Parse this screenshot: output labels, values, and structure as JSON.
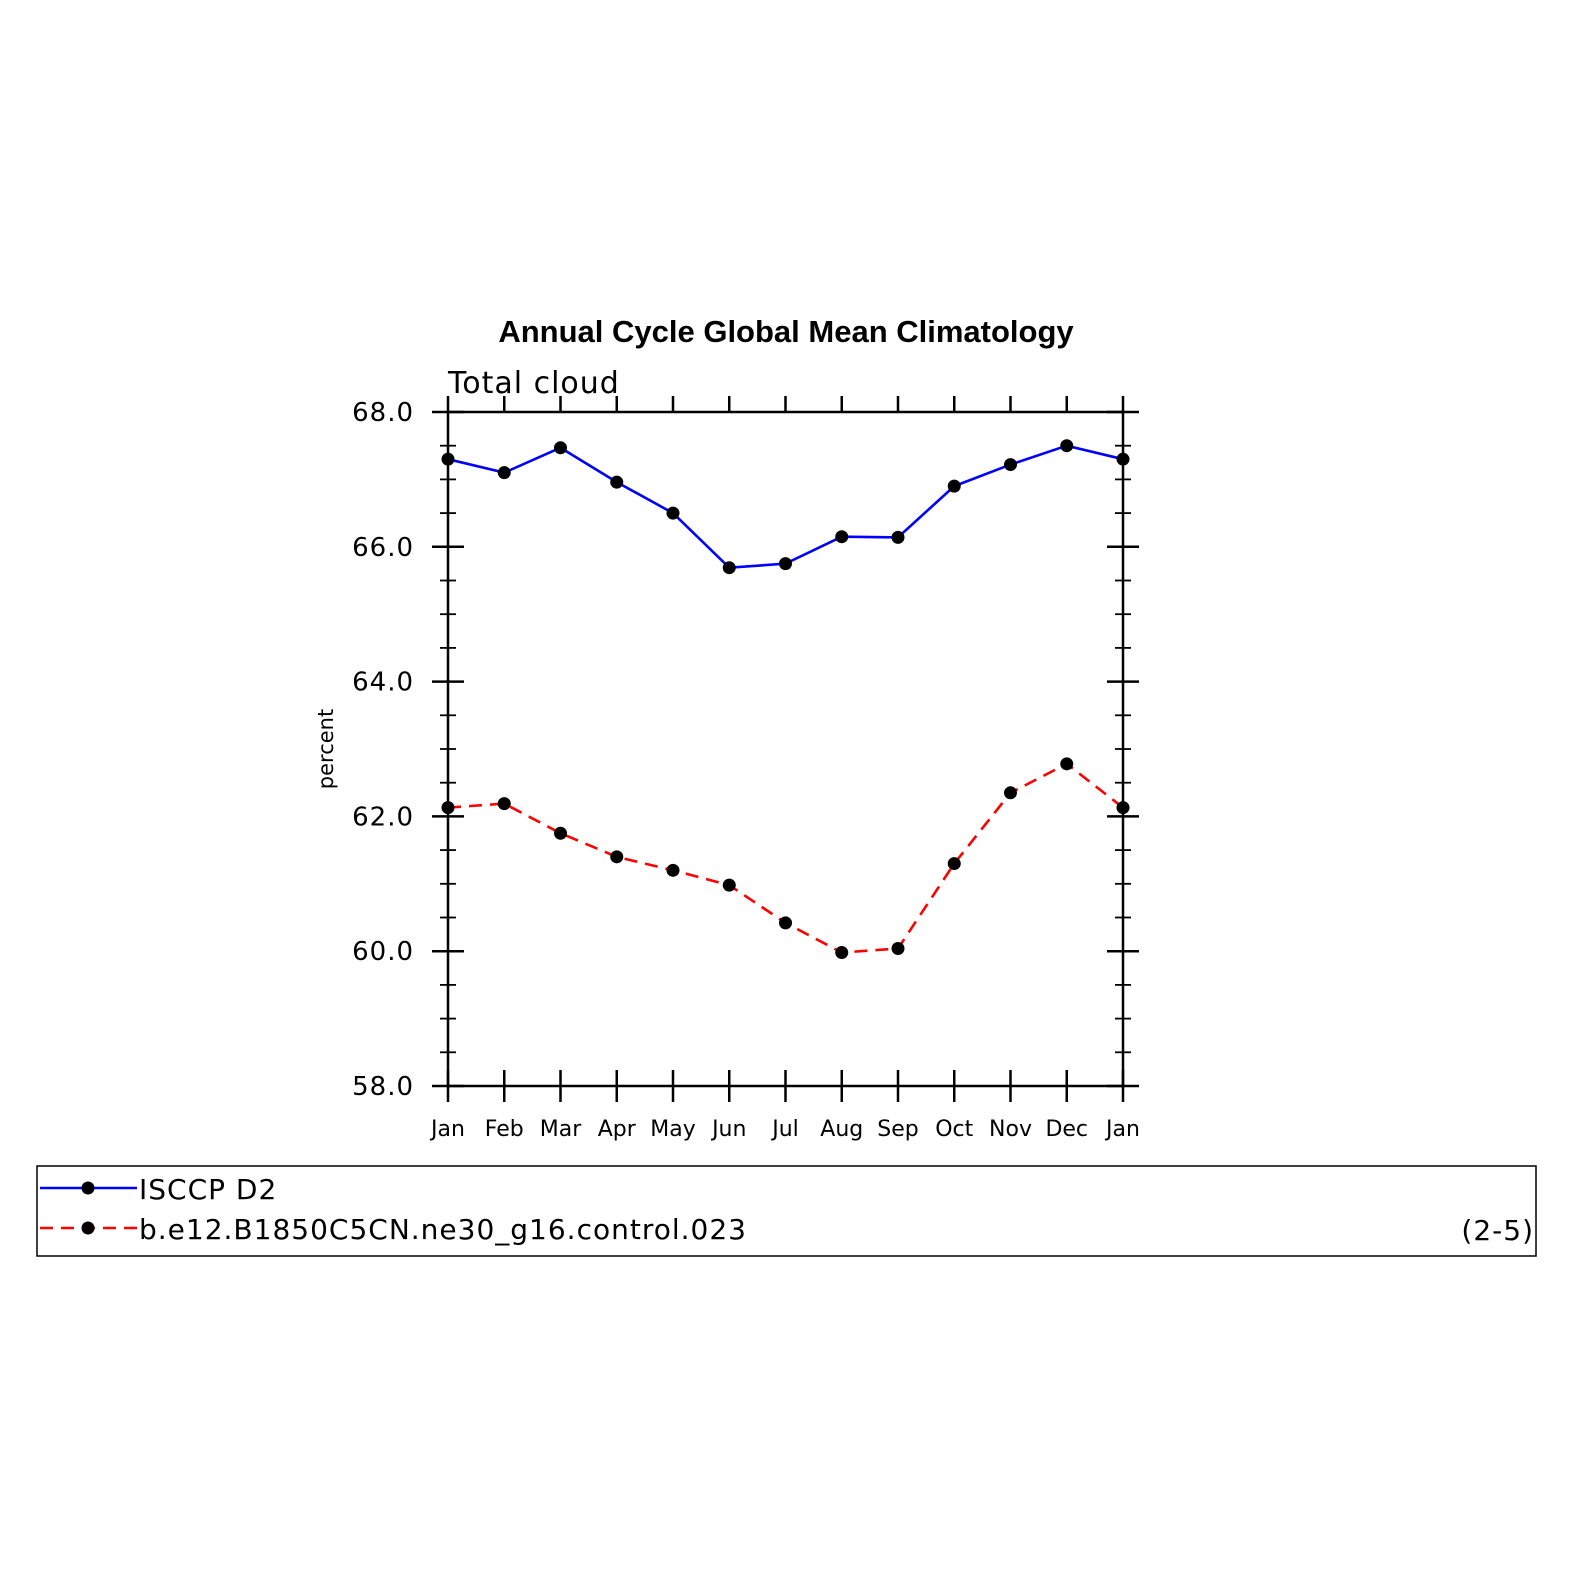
{
  "chart_data": {
    "type": "line",
    "title": "Annual Cycle Global Mean Climatology",
    "subtitle": "Total cloud",
    "ylabel": "percent",
    "xlabel": "",
    "ylim": [
      58.0,
      68.0
    ],
    "yticks": [
      "58.0",
      "60.0",
      "62.0",
      "64.0",
      "66.0",
      "68.0"
    ],
    "categories": [
      "Jan",
      "Feb",
      "Mar",
      "Apr",
      "May",
      "Jun",
      "Jul",
      "Aug",
      "Sep",
      "Oct",
      "Nov",
      "Dec",
      "Jan"
    ],
    "series": [
      {
        "name": "ISCCP D2",
        "color": "#0000ff",
        "dash": "solid",
        "values": [
          67.3,
          67.1,
          67.47,
          66.96,
          66.5,
          65.69,
          65.75,
          66.15,
          66.14,
          66.9,
          67.22,
          67.5,
          67.3
        ]
      },
      {
        "name": "b.e12.B1850C5CN.ne30_g16.control.023",
        "color": "#ff0000",
        "dash": "dashed",
        "values": [
          62.13,
          62.19,
          61.75,
          61.4,
          61.2,
          60.98,
          60.42,
          59.98,
          60.04,
          61.3,
          62.35,
          62.78,
          62.13
        ]
      }
    ],
    "grid": false,
    "legend_position": "bottom",
    "legend_note": "(2-5)"
  }
}
